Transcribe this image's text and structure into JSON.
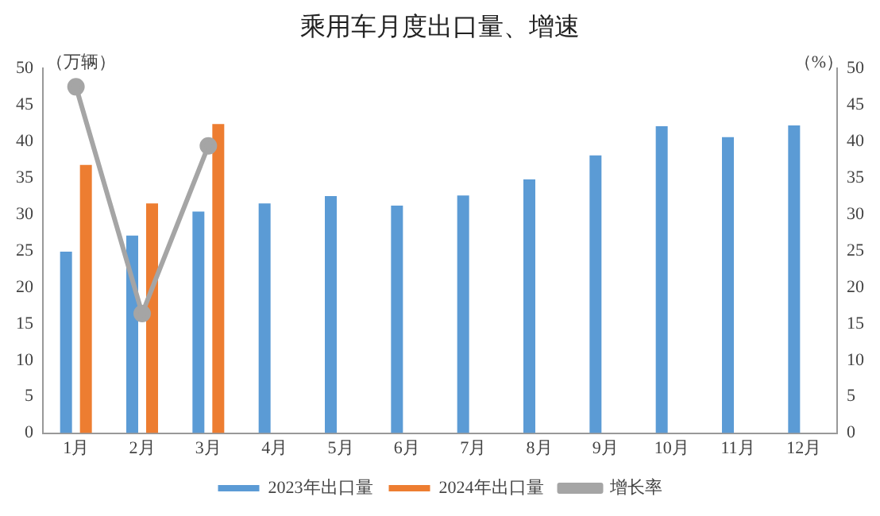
{
  "chart_data": {
    "type": "bar",
    "title": "乘用车月度出口量、增速",
    "ylabel": "（万辆）",
    "y2label": "（%）",
    "categories": [
      "1月",
      "2月",
      "3月",
      "4月",
      "5月",
      "6月",
      "7月",
      "8月",
      "9月",
      "10月",
      "11月",
      "12月"
    ],
    "series": [
      {
        "name": "2023年出口量",
        "color": "#5b9bd5",
        "values": [
          24.9,
          27.1,
          30.4,
          31.5,
          32.5,
          31.2,
          32.6,
          34.8,
          38.1,
          42.1,
          40.6,
          42.2
        ]
      },
      {
        "name": "2024年出口量",
        "color": "#ed7d31",
        "values": [
          36.8,
          31.5,
          42.4,
          null,
          null,
          null,
          null,
          null,
          null,
          null,
          null,
          null
        ]
      },
      {
        "name": "增长率",
        "type": "line",
        "axis": "y2",
        "color": "#a5a5a5",
        "values": [
          47.5,
          16.4,
          39.4,
          null,
          null,
          null,
          null,
          null,
          null,
          null,
          null,
          null
        ]
      }
    ],
    "ylim": [
      0,
      50
    ],
    "yticks": [
      0,
      5,
      10,
      15,
      20,
      25,
      30,
      35,
      40,
      45,
      50
    ],
    "y2lim": [
      0,
      50
    ],
    "y2ticks": [
      0,
      5,
      10,
      15,
      20,
      25,
      30,
      35,
      40,
      45,
      50
    ],
    "grid": false,
    "legend": "bottom",
    "marker": "circle"
  }
}
